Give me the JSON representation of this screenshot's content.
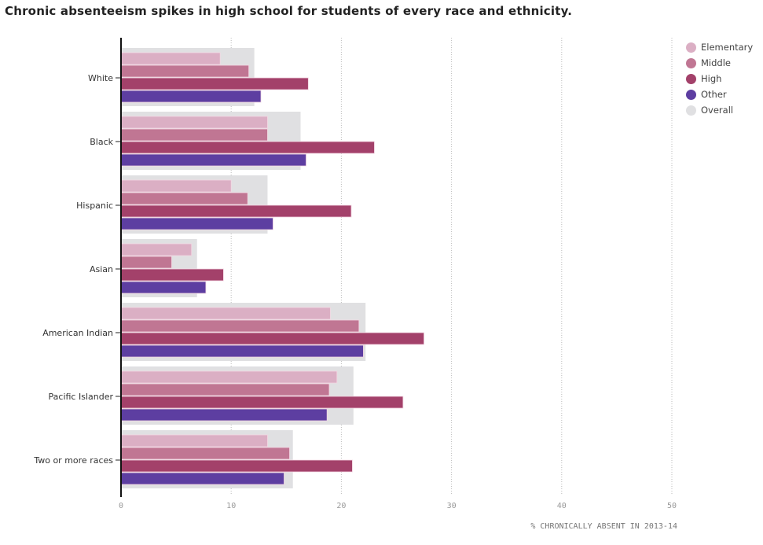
{
  "chart_data": {
    "type": "bar",
    "orientation": "horizontal",
    "title": "Chronic absenteeism spikes in high school for students of every race and ethnicity.",
    "xlabel": "% CHRONICALLY ABSENT IN 2013-14",
    "xlim": [
      0,
      50
    ],
    "xticks": [
      0,
      10,
      20,
      30,
      40,
      50
    ],
    "grid": true,
    "legend_position": "top-right",
    "categories": [
      "White",
      "Black",
      "Hispanic",
      "Asian",
      "American Indian",
      "Pacific Islander",
      "Two or more races"
    ],
    "series": [
      {
        "name": "Elementary",
        "color": "#dbafc4",
        "values": [
          9.0,
          13.3,
          10.0,
          6.4,
          19.0,
          19.6,
          13.3
        ]
      },
      {
        "name": "Middle",
        "color": "#c07693",
        "values": [
          11.6,
          13.3,
          11.5,
          4.6,
          21.6,
          18.9,
          15.3
        ]
      },
      {
        "name": "High",
        "color": "#a3416a",
        "values": [
          17.0,
          23.0,
          20.9,
          9.3,
          27.5,
          25.6,
          21.0
        ]
      },
      {
        "name": "Other",
        "color": "#5d3ea1",
        "values": [
          12.7,
          16.8,
          13.8,
          7.7,
          22.0,
          18.7,
          14.8
        ]
      },
      {
        "name": "Overall",
        "color": "#e0e0e2",
        "values": [
          12.1,
          16.3,
          13.3,
          6.9,
          22.2,
          21.1,
          15.6
        ]
      }
    ]
  }
}
